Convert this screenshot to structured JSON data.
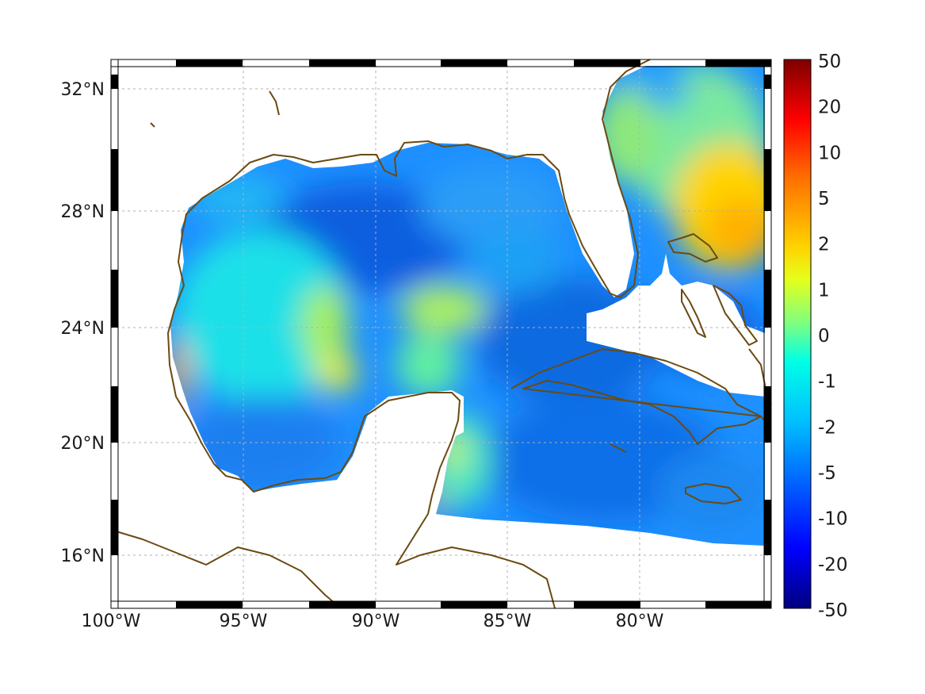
{
  "map": {
    "lon_range": [
      -100,
      -75
    ],
    "lat_range": [
      14.2,
      33
    ],
    "lon_ticks": [
      {
        "value": -100,
        "label": "100°W"
      },
      {
        "value": -95,
        "label": "95°W"
      },
      {
        "value": -90,
        "label": "90°W"
      },
      {
        "value": -85,
        "label": "85°W"
      },
      {
        "value": -80,
        "label": "80°W"
      }
    ],
    "lat_ticks": [
      {
        "value": 32,
        "label": "32°N"
      },
      {
        "value": 28,
        "label": "28°N"
      },
      {
        "value": 24,
        "label": "24°N"
      },
      {
        "value": 20,
        "label": "20°N"
      },
      {
        "value": 16,
        "label": "16°N"
      }
    ],
    "grid": true,
    "coastline_color": "#6b4a12",
    "frame_style": "alternating black-white border"
  },
  "colorbar": {
    "colormap": "jet",
    "labels": [
      "50",
      "20",
      "10",
      "5",
      "2",
      "1",
      "0",
      "-1",
      "-2",
      "-5",
      "-10",
      "-20",
      "-50"
    ],
    "placement": "right"
  }
}
